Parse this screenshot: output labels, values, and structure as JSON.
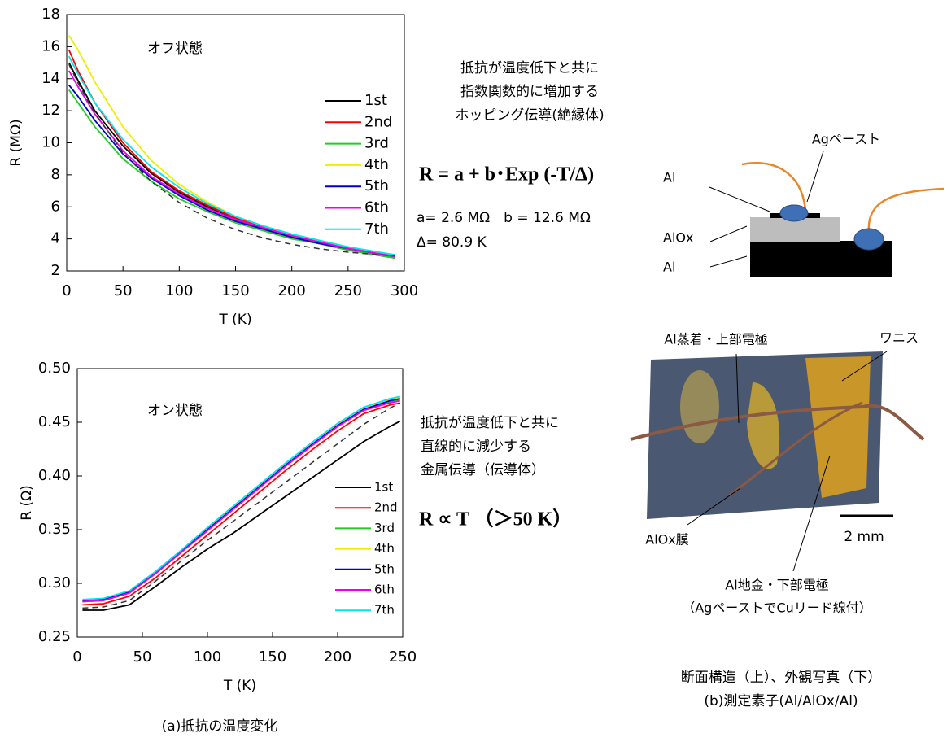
{
  "chart_data": [
    {
      "type": "line",
      "annotation": "オフ状態",
      "x_label": "T (K)",
      "y_label": "R (MΩ)",
      "xlim": [
        0,
        300
      ],
      "xticks": [
        0,
        50,
        100,
        150,
        200,
        250,
        300
      ],
      "ylim": [
        2,
        18
      ],
      "yticks": [
        2,
        4,
        6,
        8,
        10,
        12,
        14,
        16,
        18
      ],
      "x": [
        2,
        10,
        25,
        50,
        75,
        100,
        125,
        150,
        175,
        200,
        225,
        250,
        275,
        292
      ],
      "series": [
        {
          "name": "1st",
          "color": "#000000",
          "values": [
            15.0,
            13.9,
            12.0,
            9.8,
            8.1,
            6.9,
            6.0,
            5.2,
            4.6,
            4.1,
            3.7,
            3.3,
            3.0,
            2.8
          ]
        },
        {
          "name": "2nd",
          "color": "#ff0000",
          "values": [
            15.8,
            14.5,
            12.5,
            10.0,
            8.2,
            7.0,
            6.1,
            5.3,
            4.7,
            4.2,
            3.8,
            3.4,
            3.1,
            2.9
          ]
        },
        {
          "name": "3rd",
          "color": "#22cc22",
          "values": [
            13.3,
            12.5,
            11.0,
            9.0,
            7.6,
            6.5,
            5.7,
            5.0,
            4.5,
            4.0,
            3.7,
            3.3,
            3.0,
            2.8
          ]
        },
        {
          "name": "4th",
          "color": "#eeee00",
          "values": [
            16.7,
            15.8,
            13.8,
            11.0,
            8.9,
            7.4,
            6.3,
            5.4,
            4.8,
            4.3,
            3.9,
            3.5,
            3.2,
            2.9
          ]
        },
        {
          "name": "5th",
          "color": "#0000cc",
          "values": [
            13.6,
            12.9,
            11.4,
            9.3,
            7.8,
            6.7,
            5.8,
            5.1,
            4.6,
            4.1,
            3.7,
            3.4,
            3.1,
            2.9
          ]
        },
        {
          "name": "6th",
          "color": "#ee00ee",
          "values": [
            14.5,
            13.5,
            11.8,
            9.5,
            7.9,
            6.8,
            5.9,
            5.2,
            4.7,
            4.2,
            3.8,
            3.4,
            3.1,
            2.9
          ]
        },
        {
          "name": "7th",
          "color": "#00e5ee",
          "values": [
            15.4,
            14.3,
            12.5,
            10.2,
            8.5,
            7.2,
            6.2,
            5.4,
            4.8,
            4.3,
            3.9,
            3.5,
            3.2,
            3.0
          ]
        }
      ],
      "fit": {
        "color": "#333333",
        "values": [
          14.89,
          13.73,
          11.85,
          9.39,
          7.59,
          6.27,
          5.29,
          4.58,
          4.05,
          3.66,
          3.38,
          3.17,
          3.02,
          2.94
        ]
      }
    },
    {
      "type": "line",
      "annotation": "オン状態",
      "x_label": "T (K)",
      "y_label": "R (Ω)",
      "xlim": [
        0,
        250
      ],
      "xticks": [
        0,
        50,
        100,
        150,
        200,
        250
      ],
      "ylim": [
        0.25,
        0.5
      ],
      "yticks": [
        0.25,
        {
          "value": 0.3,
          "label": "0.30"
        },
        0.35,
        {
          "value": 0.4,
          "label": "0.40"
        },
        0.45,
        {
          "value": 0.5,
          "label": "0.50"
        }
      ],
      "x": [
        4,
        20,
        40,
        60,
        80,
        100,
        120,
        140,
        160,
        180,
        200,
        220,
        240,
        248
      ],
      "series": [
        {
          "name": "1st",
          "color": "#000000",
          "values": [
            0.275,
            0.275,
            0.28,
            0.297,
            0.315,
            0.332,
            0.347,
            0.364,
            0.381,
            0.398,
            0.415,
            0.432,
            0.446,
            0.451
          ]
        },
        {
          "name": "2nd",
          "color": "#ff0000",
          "values": [
            0.28,
            0.281,
            0.288,
            0.305,
            0.325,
            0.345,
            0.365,
            0.385,
            0.405,
            0.424,
            0.442,
            0.458,
            0.466,
            0.468
          ]
        },
        {
          "name": "3rd",
          "color": "#22cc22",
          "values": [
            0.283,
            0.284,
            0.291,
            0.309,
            0.329,
            0.35,
            0.37,
            0.39,
            0.41,
            0.428,
            0.446,
            0.461,
            0.469,
            0.471
          ]
        },
        {
          "name": "4th",
          "color": "#eeee00",
          "values": [
            0.284,
            0.285,
            0.292,
            0.31,
            0.33,
            0.351,
            0.371,
            0.391,
            0.411,
            0.43,
            0.448,
            0.463,
            0.471,
            0.473
          ]
        },
        {
          "name": "5th",
          "color": "#0000cc",
          "values": [
            0.284,
            0.285,
            0.292,
            0.31,
            0.33,
            0.35,
            0.37,
            0.39,
            0.41,
            0.429,
            0.447,
            0.462,
            0.47,
            0.472
          ]
        },
        {
          "name": "6th",
          "color": "#ee00ee",
          "values": [
            0.283,
            0.284,
            0.291,
            0.309,
            0.329,
            0.349,
            0.369,
            0.389,
            0.409,
            0.428,
            0.446,
            0.461,
            0.468,
            0.47
          ]
        },
        {
          "name": "7th",
          "color": "#00e5ee",
          "values": [
            0.285,
            0.286,
            0.293,
            0.311,
            0.331,
            0.352,
            0.372,
            0.392,
            0.412,
            0.431,
            0.449,
            0.464,
            0.472,
            0.474
          ]
        }
      ],
      "fit": {
        "color": "#333333",
        "values": [
          0.277,
          0.278,
          0.284,
          0.302,
          0.321,
          0.34,
          0.358,
          0.376,
          0.394,
          0.412,
          0.43,
          0.448,
          0.463,
          0.468
        ]
      }
    }
  ],
  "off_description": [
    "抵抗が温度低下と共に",
    "指数関数的に増加する",
    "ホッピング伝導(絶縁体)"
  ],
  "off_formula": "R = a + b･Exp (-T/Δ)",
  "off_params": [
    "a= 2.6 MΩ　b = 12.6 MΩ",
    "Δ= 80.9 K"
  ],
  "on_description": [
    "抵抗が温度低下と共に",
    "直線的に減少する",
    "金属伝導（伝導体）"
  ],
  "on_formula": "R ∝ T （＞50 K）",
  "caption_a": "(a)抵抗の温度変化",
  "diagram": {
    "ag_paste": "Agペースト",
    "top_al": "Al",
    "alox": "AlOx",
    "bottom_al": "Al"
  },
  "photo": {
    "top_electrode": "Al蒸着・上部電極",
    "varnish": "ワニス",
    "alox_film": "AlOx膜",
    "scale": "2 mm",
    "bottom_electrode": "Al地金・下部電極",
    "bottom_note": "（AgペーストでCuリード線付）"
  },
  "caption_b": [
    "断面構造（上）、外観写真（下）",
    "(b)測定素子(Al/AlOx/Al)"
  ]
}
